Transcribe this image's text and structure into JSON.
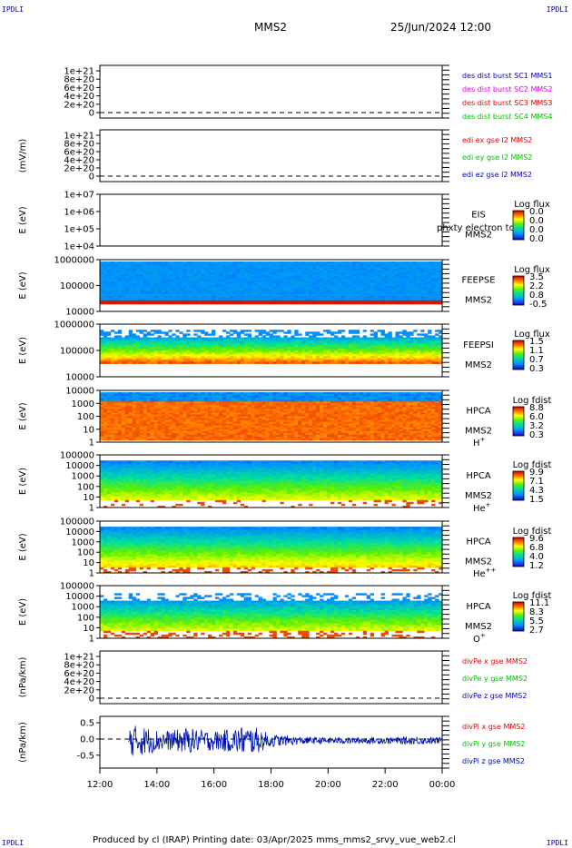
{
  "corners": {
    "top_left": "IPDLI",
    "top_right": "IPDLI",
    "bottom_left": "IPDLI",
    "bottom_right": "IPDLI"
  },
  "header": {
    "title": "MMS2",
    "datetime": "25/Jun/2024 12:00"
  },
  "footer": {
    "text": "Produced by cl (IRAP)   Printing date: 03/Apr/2025   mms_mms2_srvy_vue_web2.cl"
  },
  "x_axis": {
    "ticks": [
      "12:00",
      "14:00",
      "16:00",
      "18:00",
      "20:00",
      "22:00",
      "00:00"
    ]
  },
  "colors": {
    "red": "#e00000",
    "magenta": "#e000e0",
    "green": "#00c000",
    "blue": "#0000c0"
  },
  "chart_data": [
    {
      "type": "line",
      "panel": "dist-burst",
      "yticks": [
        "1e+21",
        "8e+20",
        "6e+20",
        "4e+20",
        "2e+20",
        "0"
      ],
      "ylabel": "",
      "legend": [
        {
          "label": "des dist burst SC1 MMS1",
          "color": "#0000c0"
        },
        {
          "label": "des dist burst SC2 MMS2",
          "color": "#e000e0"
        },
        {
          "label": "des dist burst SC3 MMS3",
          "color": "#e00000"
        },
        {
          "label": "des dist burst SC4 MMS4",
          "color": "#00c000"
        }
      ],
      "series": []
    },
    {
      "type": "line",
      "panel": "edi-e",
      "yticks": [
        "1e+21",
        "8e+20",
        "6e+20",
        "4e+20",
        "2e+20",
        "0"
      ],
      "ylabel": "(mV/m)",
      "legend": [
        {
          "label": "edi ex gse l2 MMS2",
          "color": "#e00000"
        },
        {
          "label": "edi ey gse l2 MMS2",
          "color": "#00c000"
        },
        {
          "label": "edi ez gse l2 MMS2",
          "color": "#0000c0"
        }
      ],
      "series": []
    },
    {
      "type": "heatmap",
      "panel": "eis",
      "yticks": [
        "1e+07",
        "1e+06",
        "1e+05",
        "1e+04"
      ],
      "ylabel": "E (eV)",
      "labels": [
        "EIS",
        "MMS2"
      ],
      "overlay": "phxty electron tof",
      "cbar_title": "Log flux",
      "cbar_ticks": [
        "0.0",
        "0.0",
        "0.0",
        "0.0"
      ]
    },
    {
      "type": "heatmap",
      "panel": "feepse",
      "yticks": [
        "1000000",
        "100000",
        "10000"
      ],
      "ylabel": "E (eV)",
      "labels": [
        "FEEPSE",
        "MMS2"
      ],
      "cbar_title": "Log flux",
      "cbar_ticks": [
        "3.5",
        "2.2",
        "0.8",
        "-0.5"
      ]
    },
    {
      "type": "heatmap",
      "panel": "feepsi",
      "yticks": [
        "1000000",
        "100000",
        "10000"
      ],
      "ylabel": "E (eV)",
      "labels": [
        "FEEPSI",
        "MMS2"
      ],
      "cbar_title": "Log flux",
      "cbar_ticks": [
        "1.5",
        "1.1",
        "0.7",
        "0.3"
      ]
    },
    {
      "type": "heatmap",
      "panel": "hpca-h",
      "yticks": [
        "10000",
        "1000",
        "100",
        "10",
        "1"
      ],
      "ylabel": "E (eV)",
      "labels": [
        "HPCA",
        "MMS2"
      ],
      "species": "H",
      "charge": "+",
      "cbar_title": "Log fdist",
      "cbar_ticks": [
        "8.8",
        "6.0",
        "3.2",
        "0.3"
      ]
    },
    {
      "type": "heatmap",
      "panel": "hpca-he",
      "yticks": [
        "100000",
        "10000",
        "1000",
        "100",
        "10",
        "1"
      ],
      "ylabel": "E (eV)",
      "labels": [
        "HPCA",
        "MMS2"
      ],
      "species": "He",
      "charge": "+",
      "cbar_title": "Log fdist",
      "cbar_ticks": [
        "9.9",
        "7.1",
        "4.3",
        "1.5"
      ]
    },
    {
      "type": "heatmap",
      "panel": "hpca-hepp",
      "yticks": [
        "100000",
        "10000",
        "1000",
        "100",
        "10",
        "1"
      ],
      "ylabel": "E (eV)",
      "labels": [
        "HPCA",
        "MMS2"
      ],
      "species": "He",
      "charge": "++",
      "cbar_title": "Log fdist",
      "cbar_ticks": [
        "9.6",
        "6.8",
        "4.0",
        "1.2"
      ]
    },
    {
      "type": "heatmap",
      "panel": "hpca-o",
      "yticks": [
        "100000",
        "10000",
        "1000",
        "100",
        "10",
        "1"
      ],
      "ylabel": "E (eV)",
      "labels": [
        "HPCA",
        "MMS2"
      ],
      "species": "O",
      "charge": "+",
      "cbar_title": "Log fdist",
      "cbar_ticks": [
        "11.1",
        "8.3",
        "5.5",
        "2.7"
      ]
    },
    {
      "type": "line",
      "panel": "divpe",
      "yticks": [
        "1e+21",
        "8e+20",
        "6e+20",
        "4e+20",
        "2e+20",
        "0"
      ],
      "ylabel": "(nPa/km)",
      "legend": [
        {
          "label": "divPe x gse MMS2",
          "color": "#e00000"
        },
        {
          "label": "divPe y gse MMS2",
          "color": "#00c000"
        },
        {
          "label": "divPe z gse MMS2",
          "color": "#0000c0"
        }
      ],
      "series": []
    },
    {
      "type": "line",
      "panel": "divpi",
      "yticks": [
        "0.5",
        "0.0",
        "-0.5"
      ],
      "ylabel": "(nPa/km)",
      "ylim": [
        -0.9,
        0.7
      ],
      "legend": [
        {
          "label": "divPi x gse MMS2",
          "color": "#e00000"
        },
        {
          "label": "divPi y gse MMS2",
          "color": "#00c000"
        },
        {
          "label": "divPi z gse MMS2",
          "color": "#0000c0"
        }
      ],
      "series": [
        {
          "name": "divPi z gse MMS2",
          "x": [
            "13:00",
            "13:30",
            "14:00",
            "14:30",
            "15:00",
            "15:30",
            "16:00",
            "16:30",
            "17:00",
            "17:30",
            "18:00",
            "19:00",
            "20:00",
            "21:00",
            "22:00",
            "23:00",
            "00:00"
          ],
          "amplitude": [
            0.5,
            0.45,
            0.35,
            0.3,
            0.4,
            0.35,
            0.3,
            0.35,
            0.45,
            0.4,
            0.2,
            0.12,
            0.1,
            0.1,
            0.1,
            0.12,
            0.1
          ]
        }
      ]
    }
  ]
}
